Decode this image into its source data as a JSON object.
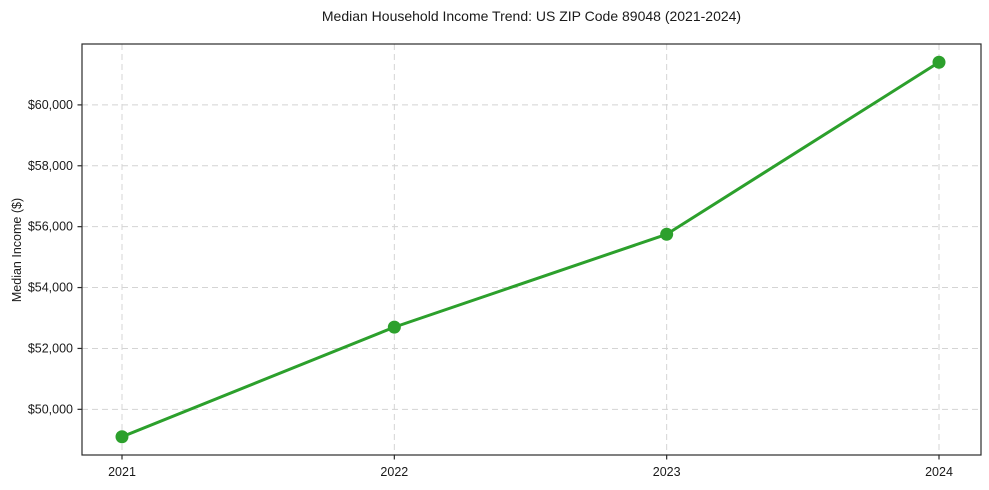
{
  "chart_data": {
    "type": "line",
    "title": "Median Household Income Trend: US ZIP Code 89048 (2021-2024)",
    "xlabel": "",
    "ylabel": "Median Income ($)",
    "categories": [
      "2021",
      "2022",
      "2023",
      "2024"
    ],
    "series": [
      {
        "name": "Median Household Income",
        "values": [
          49100,
          52700,
          55750,
          61400
        ]
      }
    ],
    "yticks": [
      50000,
      52000,
      54000,
      56000,
      58000,
      60000
    ],
    "ytick_labels": [
      "$50,000",
      "$52,000",
      "$54,000",
      "$56,000",
      "$58,000",
      "$60,000"
    ],
    "ylim": [
      48500,
      62000
    ],
    "grid": true,
    "grid_style": "dashed",
    "legend_position": "none",
    "line_color": "#2ca02c",
    "marker": "circle",
    "marker_color": "#2ca02c",
    "grid_color": "#d4d4d4",
    "spine_color": "#2b2b2b",
    "text_color": "#1a1a1a",
    "background_color": "#ffffff"
  }
}
